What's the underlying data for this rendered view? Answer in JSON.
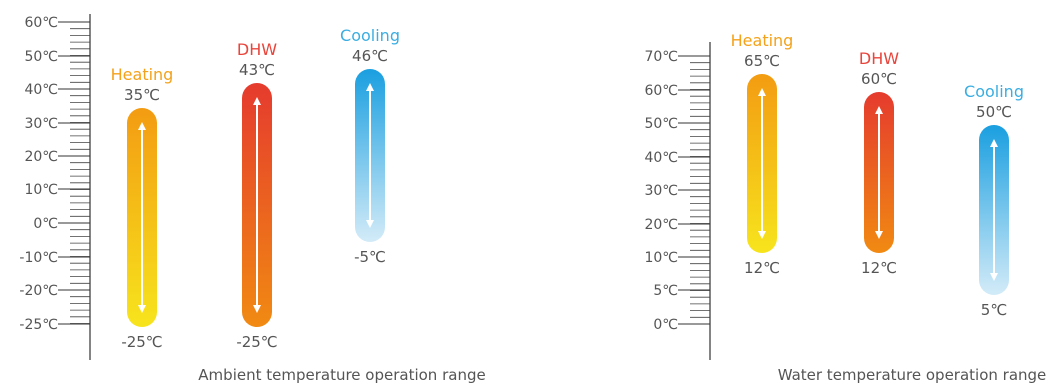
{
  "chart_data": [
    {
      "type": "range-bar",
      "title": "",
      "caption": "Ambient temperature operation range",
      "y_ticks": [
        "60℃",
        "50℃",
        "40℃",
        "30℃",
        "20℃",
        "10℃",
        "0℃",
        "-10℃",
        "-20℃",
        "-25℃"
      ],
      "bars": [
        {
          "name": "Heating",
          "min": -25,
          "max": 35,
          "min_label": "-25℃",
          "max_label": "35℃",
          "label_color": "#f4a21a",
          "colors": [
            "#f39c12",
            "#f7e41d"
          ]
        },
        {
          "name": "DHW",
          "min": -25,
          "max": 43,
          "min_label": "-25℃",
          "max_label": "43℃",
          "label_color": "#e8453c",
          "colors": [
            "#e53b2e",
            "#f18a12"
          ]
        },
        {
          "name": "Cooling",
          "min": -5,
          "max": 46,
          "min_label": "-5℃",
          "max_label": "46℃",
          "label_color": "#3aaee2",
          "colors": [
            "#1a9fe0",
            "#d3ebf8"
          ]
        }
      ]
    },
    {
      "type": "range-bar",
      "title": "",
      "caption": "Water temperature operation range",
      "y_ticks": [
        "70℃",
        "60℃",
        "50℃",
        "40℃",
        "30℃",
        "20℃",
        "10℃",
        "5℃",
        "0℃"
      ],
      "bars": [
        {
          "name": "Heating",
          "min": 12,
          "max": 65,
          "min_label": "12℃",
          "max_label": "65℃",
          "label_color": "#f4a21a",
          "colors": [
            "#f39c12",
            "#f7e41d"
          ]
        },
        {
          "name": "DHW",
          "min": 12,
          "max": 60,
          "min_label": "12℃",
          "max_label": "60℃",
          "label_color": "#e8453c",
          "colors": [
            "#e53b2e",
            "#f18a12"
          ]
        },
        {
          "name": "Cooling",
          "min": 5,
          "max": 50,
          "min_label": "5℃",
          "max_label": "50℃",
          "label_color": "#3aaee2",
          "colors": [
            "#1a9fe0",
            "#d3ebf8"
          ]
        }
      ]
    }
  ]
}
